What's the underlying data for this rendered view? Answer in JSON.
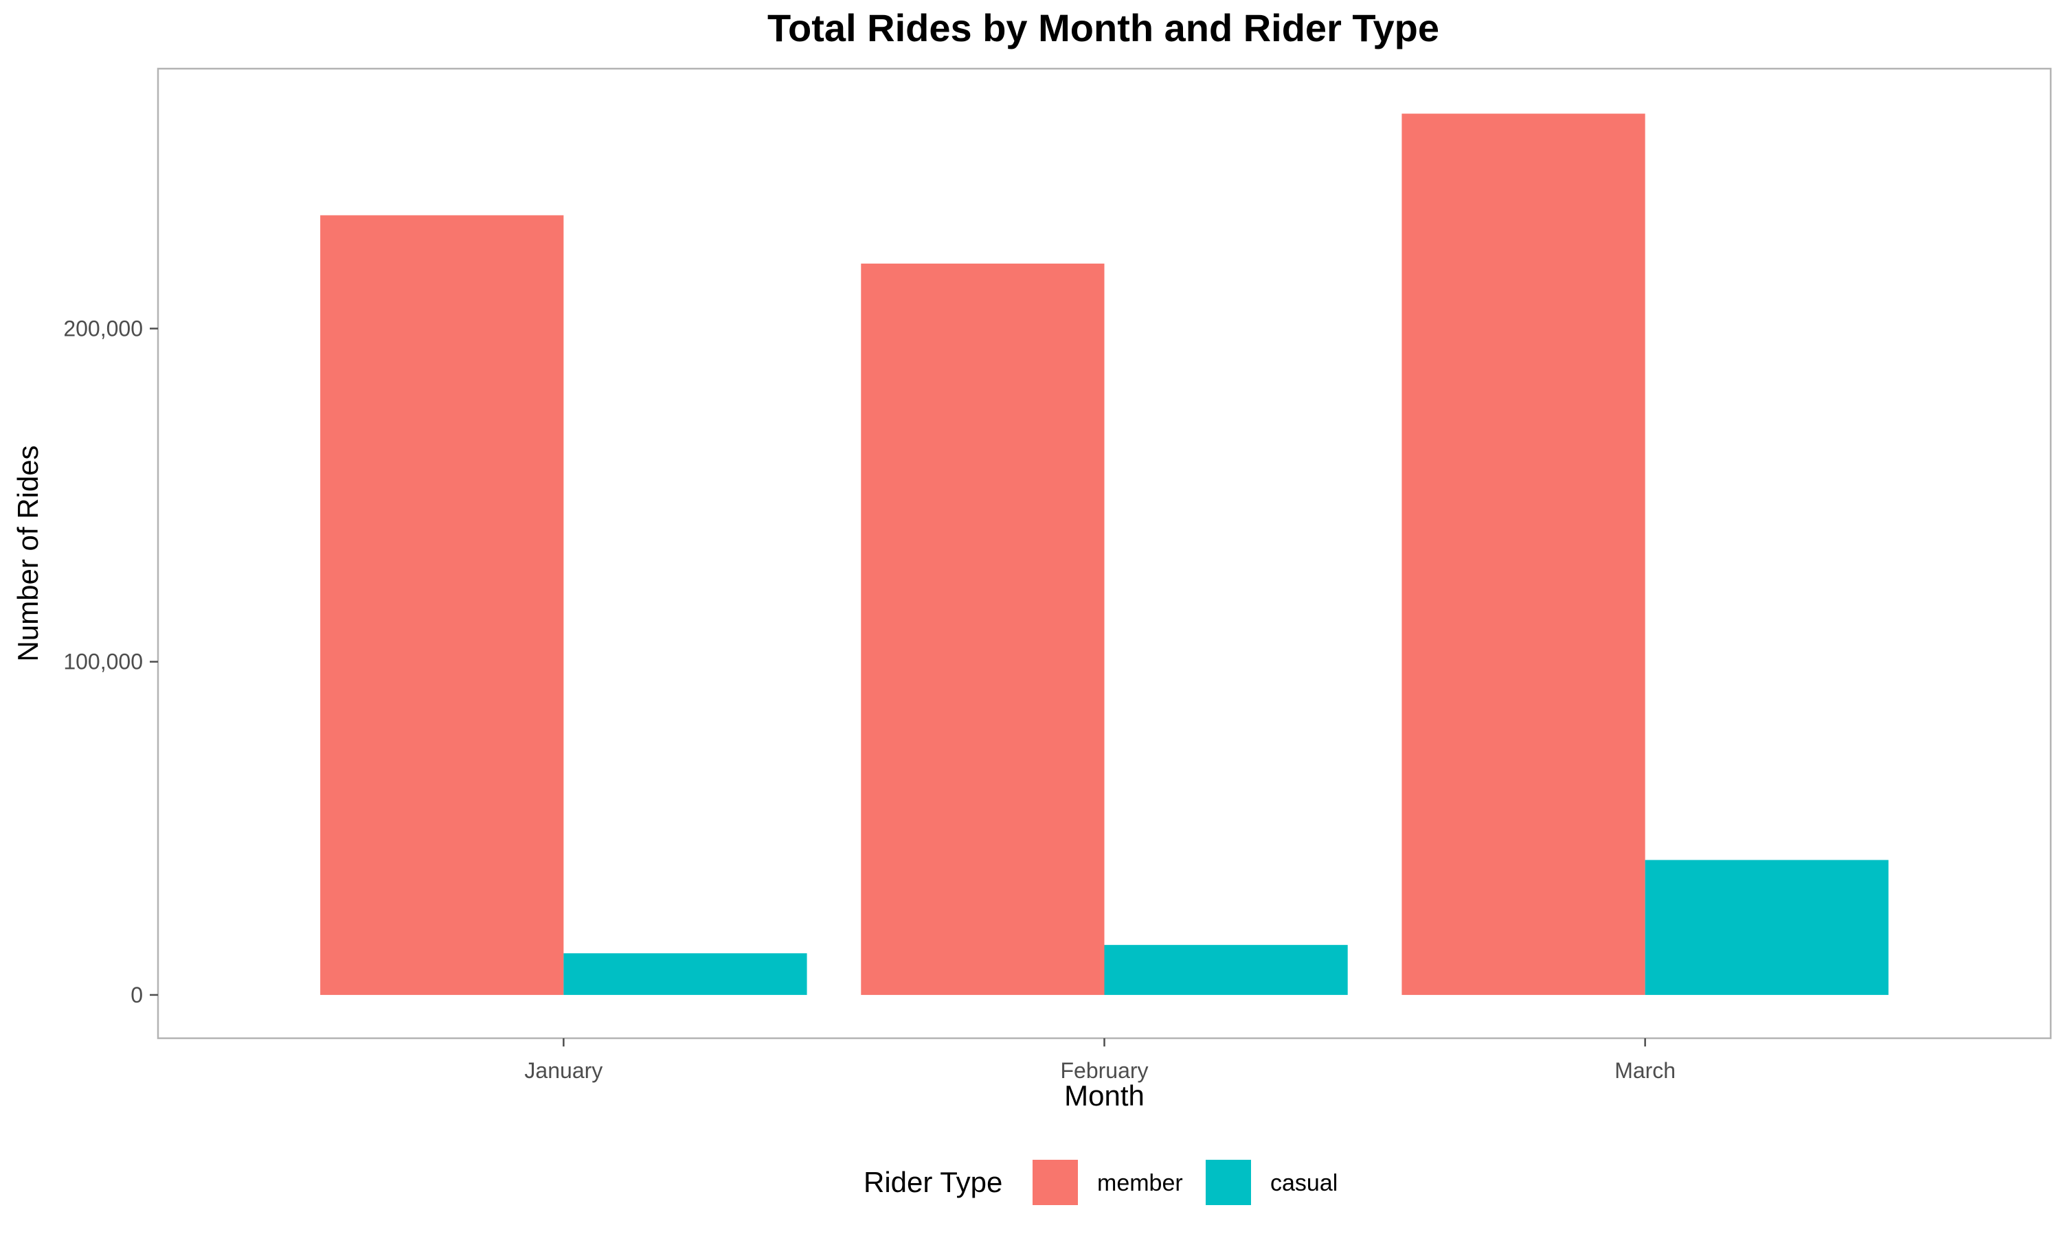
{
  "chart_data": {
    "type": "bar",
    "title": "Total Rides by Month and Rider Type",
    "xlabel": "Month",
    "ylabel": "Number of Rides",
    "categories": [
      "January",
      "February",
      "March"
    ],
    "series": [
      {
        "name": "member",
        "values": [
          234000,
          219500,
          264500
        ],
        "color": "#F8766D"
      },
      {
        "name": "casual",
        "values": [
          12500,
          15000,
          40500
        ],
        "color": "#00BFC4"
      }
    ],
    "ylim": [
      -13000,
      278000
    ],
    "yticks": [
      0,
      100000,
      200000
    ],
    "ytick_labels": [
      "0",
      "100,000",
      "200,000"
    ],
    "grid": false,
    "legend": {
      "title": "Rider Type",
      "placement": "bottom"
    }
  }
}
